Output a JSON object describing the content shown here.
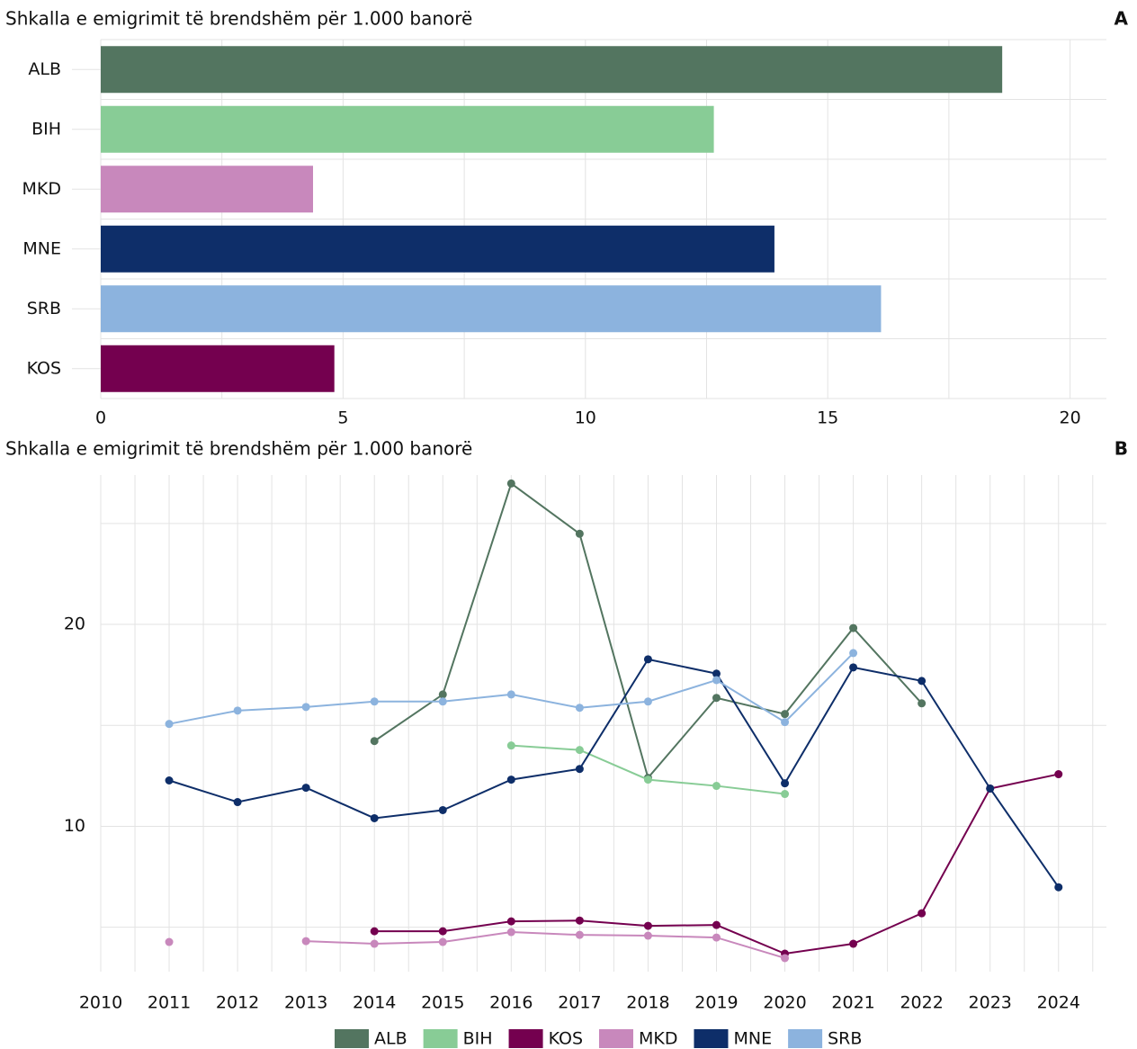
{
  "chart_data": [
    {
      "type": "hbar",
      "title": "Shkalla e emigrimit të brendshëm për 1.000 banorë",
      "label": "A",
      "categories": [
        "ALB",
        "BIH",
        "MKD",
        "MNE",
        "SRB",
        "KOS"
      ],
      "values": [
        18.6,
        12.65,
        4.38,
        13.9,
        16.1,
        4.82
      ],
      "colors": [
        "#537560",
        "#88cc96",
        "#c888bc",
        "#0e2e69",
        "#8cb3de",
        "#74004f"
      ],
      "xlim": [
        0,
        20.75
      ],
      "xticks": [
        0,
        5,
        10,
        15,
        20
      ],
      "xminor": [
        2.5,
        7.5,
        12.5,
        17.5
      ],
      "grid": true
    },
    {
      "type": "line",
      "title": "Shkalla e emigrimit të brendshëm për 1.000 banorë",
      "label": "B",
      "x": [
        2011,
        2012,
        2013,
        2014,
        2015,
        2016,
        2017,
        2018,
        2019,
        2020,
        2021,
        2022,
        2023,
        2024
      ],
      "series": [
        {
          "name": "ALB",
          "color": "#537560",
          "values": [
            null,
            null,
            null,
            14.22,
            16.53,
            26.98,
            24.49,
            12.4,
            16.36,
            15.56,
            19.82,
            16.09,
            null,
            null
          ]
        },
        {
          "name": "BIH",
          "color": "#88cc96",
          "values": [
            null,
            null,
            null,
            null,
            null,
            14.0,
            13.78,
            12.31,
            12.0,
            11.6,
            null,
            null,
            null,
            null
          ]
        },
        {
          "name": "KOS",
          "color": "#74004f",
          "values": [
            null,
            null,
            null,
            4.8,
            4.8,
            5.29,
            5.33,
            5.07,
            5.11,
            3.69,
            4.18,
            5.69,
            11.87,
            12.58
          ]
        },
        {
          "name": "MKD",
          "color": "#c888bc",
          "values": [
            4.27,
            null,
            4.31,
            4.18,
            4.27,
            4.76,
            4.62,
            4.58,
            4.49,
            3.47,
            null,
            null,
            null,
            null
          ]
        },
        {
          "name": "MNE",
          "color": "#0e2e69",
          "values": [
            12.27,
            11.2,
            11.91,
            10.4,
            10.8,
            12.31,
            12.84,
            18.27,
            17.56,
            12.13,
            17.87,
            17.2,
            11.87,
            6.98
          ]
        },
        {
          "name": "SRB",
          "color": "#8cb3de",
          "values": [
            15.07,
            15.73,
            15.91,
            16.18,
            16.18,
            16.53,
            15.87,
            16.18,
            17.24,
            15.16,
            18.58,
            null,
            null,
            null
          ]
        }
      ],
      "xlim": [
        2010,
        2024.7
      ],
      "xticks": [
        2010,
        2011,
        2012,
        2013,
        2014,
        2015,
        2016,
        2017,
        2018,
        2019,
        2020,
        2021,
        2022,
        2023,
        2024
      ],
      "xminor": [
        2010.5,
        2011.5,
        2012.5,
        2013.5,
        2014.5,
        2015.5,
        2016.5,
        2017.5,
        2018.5,
        2019.5,
        2020.5,
        2021.5,
        2022.5,
        2023.5,
        2024.5
      ],
      "ylim": [
        2.8,
        27.4
      ],
      "yticks": [
        10,
        20
      ],
      "yminor": [
        5,
        15,
        25
      ],
      "grid": true
    }
  ]
}
